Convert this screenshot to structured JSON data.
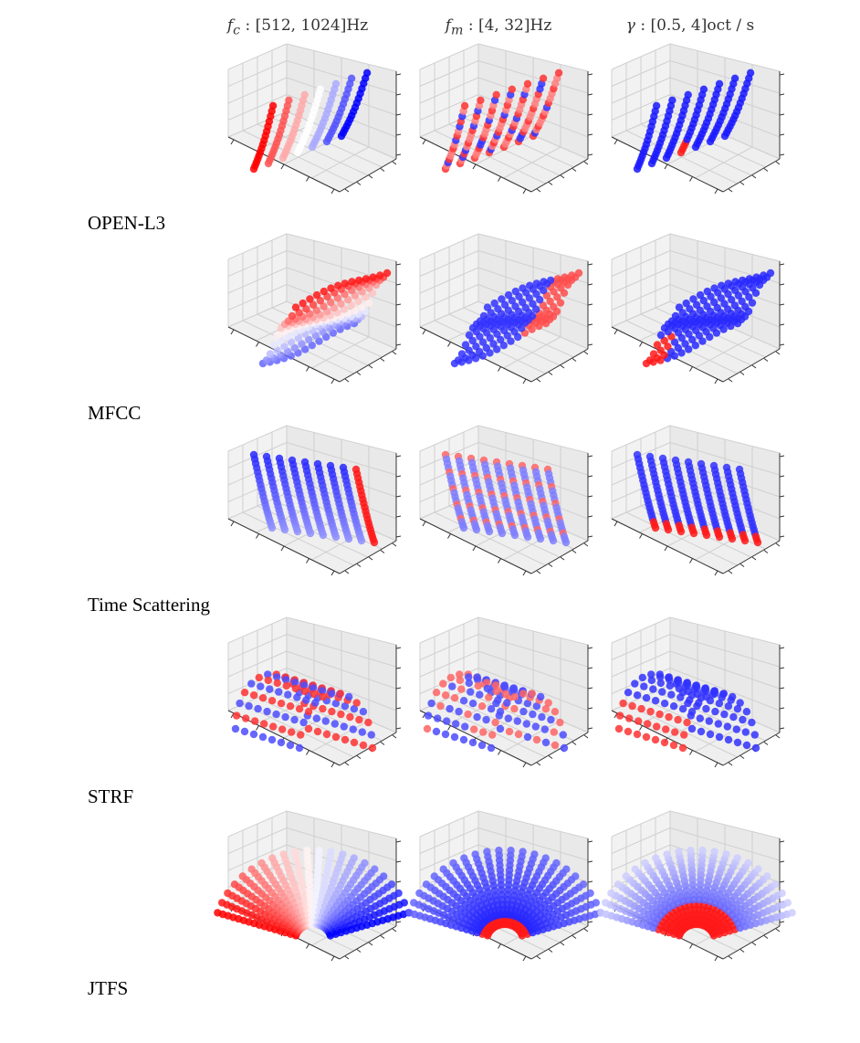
{
  "columns": [
    {
      "var": "f",
      "sub": "c",
      "range": ": [512, 1024]Hz"
    },
    {
      "var": "f",
      "sub": "m",
      "range": ": [4, 32]Hz"
    },
    {
      "var": "γ",
      "sub": "",
      "range": ": [0.5, 4]oct / s"
    }
  ],
  "rows": [
    "OPEN-L3",
    "MFCC",
    "Time Scattering",
    "STRF",
    "JTFS"
  ],
  "colors": {
    "high": "#ff0000",
    "mid": "#ffffff",
    "low": "#0000ff",
    "pane": "#ececec",
    "grid": "#d0d0d0"
  }
}
